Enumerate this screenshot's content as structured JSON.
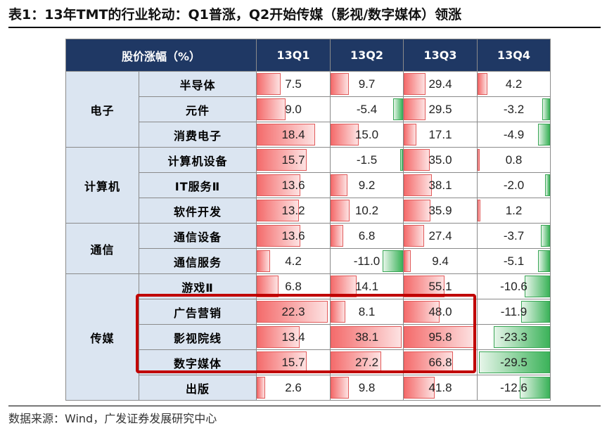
{
  "title": "表1：13年TMT的行业轮动：Q1普涨，Q2开始传媒（影视/数字媒体）领涨",
  "source": "数据来源：Wind，广发证券发展研究中心",
  "colors": {
    "header_bg": "#1f3864",
    "label_bg": "#dbe5f1",
    "positive": "#f46b6b",
    "negative": "#3cb35a",
    "highlight": "#c00000"
  },
  "header": {
    "metric": "股价涨幅（%）",
    "quarters": [
      "13Q1",
      "13Q2",
      "13Q3",
      "13Q4"
    ]
  },
  "groups": [
    {
      "name": "电子",
      "rows": [
        {
          "label": "半导体",
          "values": [
            7.5,
            9.7,
            29.4,
            4.2
          ],
          "display": [
            "7.5",
            "9.7",
            "29.4",
            "4.2"
          ]
        },
        {
          "label": "元件",
          "values": [
            9.0,
            -5.4,
            29.5,
            -3.2
          ],
          "display": [
            "9.0",
            "-5.4",
            "29.5",
            "-3.2"
          ]
        },
        {
          "label": "消费电子",
          "values": [
            18.4,
            15.0,
            17.1,
            -4.9
          ],
          "display": [
            "18.4",
            "15.0",
            "17.1",
            "-4.9"
          ]
        }
      ]
    },
    {
      "name": "计算机",
      "rows": [
        {
          "label": "计算机设备",
          "values": [
            15.7,
            -1.5,
            35.0,
            0.8
          ],
          "display": [
            "15.7",
            "-1.5",
            "35.0",
            "0.8"
          ]
        },
        {
          "label": "IT服务Ⅱ",
          "values": [
            13.6,
            9.2,
            38.1,
            -2.0
          ],
          "display": [
            "13.6",
            "9.2",
            "38.1",
            "-2.0"
          ]
        },
        {
          "label": "软件开发",
          "values": [
            13.2,
            10.2,
            35.9,
            1.2
          ],
          "display": [
            "13.2",
            "10.2",
            "35.9",
            "1.2"
          ]
        }
      ]
    },
    {
      "name": "通信",
      "rows": [
        {
          "label": "通信设备",
          "values": [
            13.6,
            6.8,
            27.4,
            -3.7
          ],
          "display": [
            "13.6",
            "6.8",
            "27.4",
            "-3.7"
          ]
        },
        {
          "label": "通信服务",
          "values": [
            4.2,
            -11.0,
            9.4,
            -5.1
          ],
          "display": [
            "4.2",
            "-11.0",
            "9.4",
            "-5.1"
          ]
        }
      ]
    },
    {
      "name": "传媒",
      "rows": [
        {
          "label": "游戏Ⅱ",
          "values": [
            6.8,
            14.1,
            55.1,
            -10.6
          ],
          "display": [
            "6.8",
            "14.1",
            "55.1",
            "-10.6"
          ]
        },
        {
          "label": "广告营销",
          "values": [
            22.3,
            8.1,
            48.0,
            -11.9
          ],
          "display": [
            "22.3",
            "8.1",
            "48.0",
            "-11.9"
          ]
        },
        {
          "label": "影视院线",
          "values": [
            13.4,
            38.1,
            95.8,
            -23.3
          ],
          "display": [
            "13.4",
            "38.1",
            "95.8",
            "-23.3"
          ]
        },
        {
          "label": "数字媒体",
          "values": [
            15.7,
            27.2,
            66.8,
            -29.5
          ],
          "display": [
            "15.7",
            "27.2",
            "66.8",
            "-29.5"
          ]
        },
        {
          "label": "出版",
          "values": [
            2.6,
            9.8,
            41.8,
            -12.6
          ],
          "display": [
            "2.6",
            "9.8",
            "41.8",
            "-12.6"
          ]
        }
      ]
    }
  ]
}
